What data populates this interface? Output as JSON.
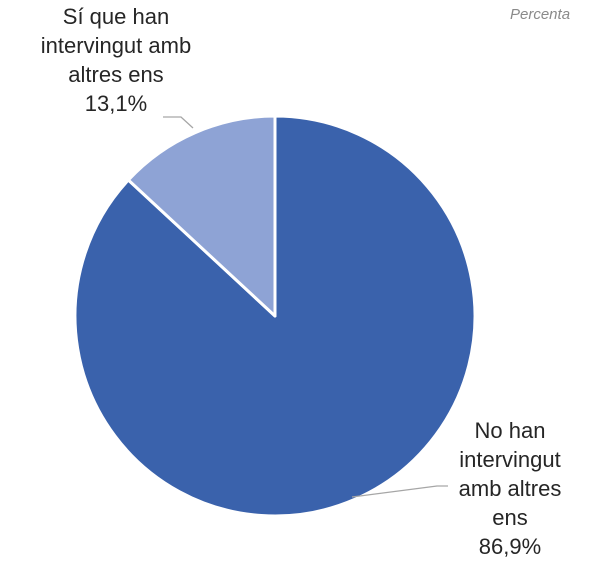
{
  "header": {
    "corner_note": "Percenta"
  },
  "chart_data": {
    "type": "pie",
    "title": "",
    "slices": [
      {
        "label_lines": [
          "No han",
          "intervingut",
          "amb altres",
          "ens"
        ],
        "value": 86.9,
        "value_label": "86,9%",
        "color": "#3A62AC"
      },
      {
        "label_lines": [
          "Sí que han",
          "intervingut amb",
          "altres ens"
        ],
        "value": 13.1,
        "value_label": "13,1%",
        "color": "#8EA3D5"
      }
    ],
    "start": "12 o'clock",
    "direction": "clockwise",
    "legend": "none"
  }
}
